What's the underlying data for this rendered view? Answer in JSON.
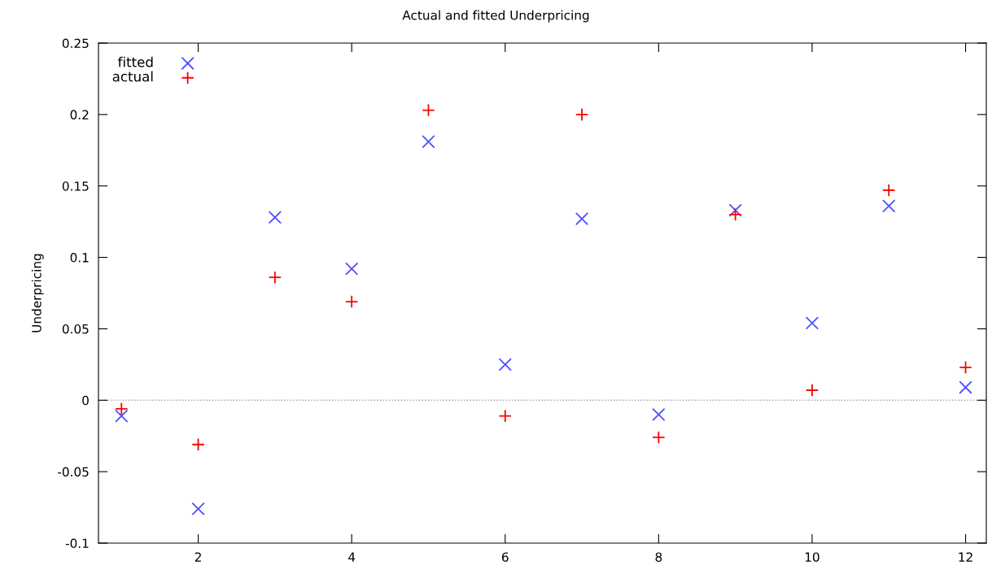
{
  "chart_data": {
    "type": "scatter",
    "title": "Actual and fitted Underpricing",
    "ylabel": "Underpricing",
    "x": [
      1,
      2,
      3,
      4,
      5,
      6,
      7,
      8,
      9,
      10,
      11,
      12
    ],
    "series": [
      {
        "name": "fitted",
        "color": "#4f4fff",
        "marker": "cross",
        "values": [
          -0.011,
          -0.076,
          0.128,
          0.092,
          0.181,
          0.025,
          0.127,
          -0.01,
          0.133,
          0.054,
          0.136,
          0.009
        ]
      },
      {
        "name": "actual",
        "color": "#ff0000",
        "marker": "plus",
        "values": [
          -0.006,
          -0.031,
          0.086,
          0.069,
          0.203,
          -0.011,
          0.2,
          -0.026,
          0.13,
          0.007,
          0.147,
          0.023
        ]
      }
    ],
    "xlim": [
      0.7,
      12.27
    ],
    "xticks": [
      2,
      4,
      6,
      8,
      10,
      12
    ],
    "ylim": [
      -0.1,
      0.25
    ],
    "yticks": [
      -0.1,
      -0.05,
      0,
      0.05,
      0.1,
      0.15,
      0.2,
      0.25
    ],
    "ref_lines": [
      {
        "axis": "y",
        "value": 0,
        "color": "#a0a0a0",
        "line_style": "dotted"
      }
    ],
    "grid": false,
    "legend": "top left"
  }
}
